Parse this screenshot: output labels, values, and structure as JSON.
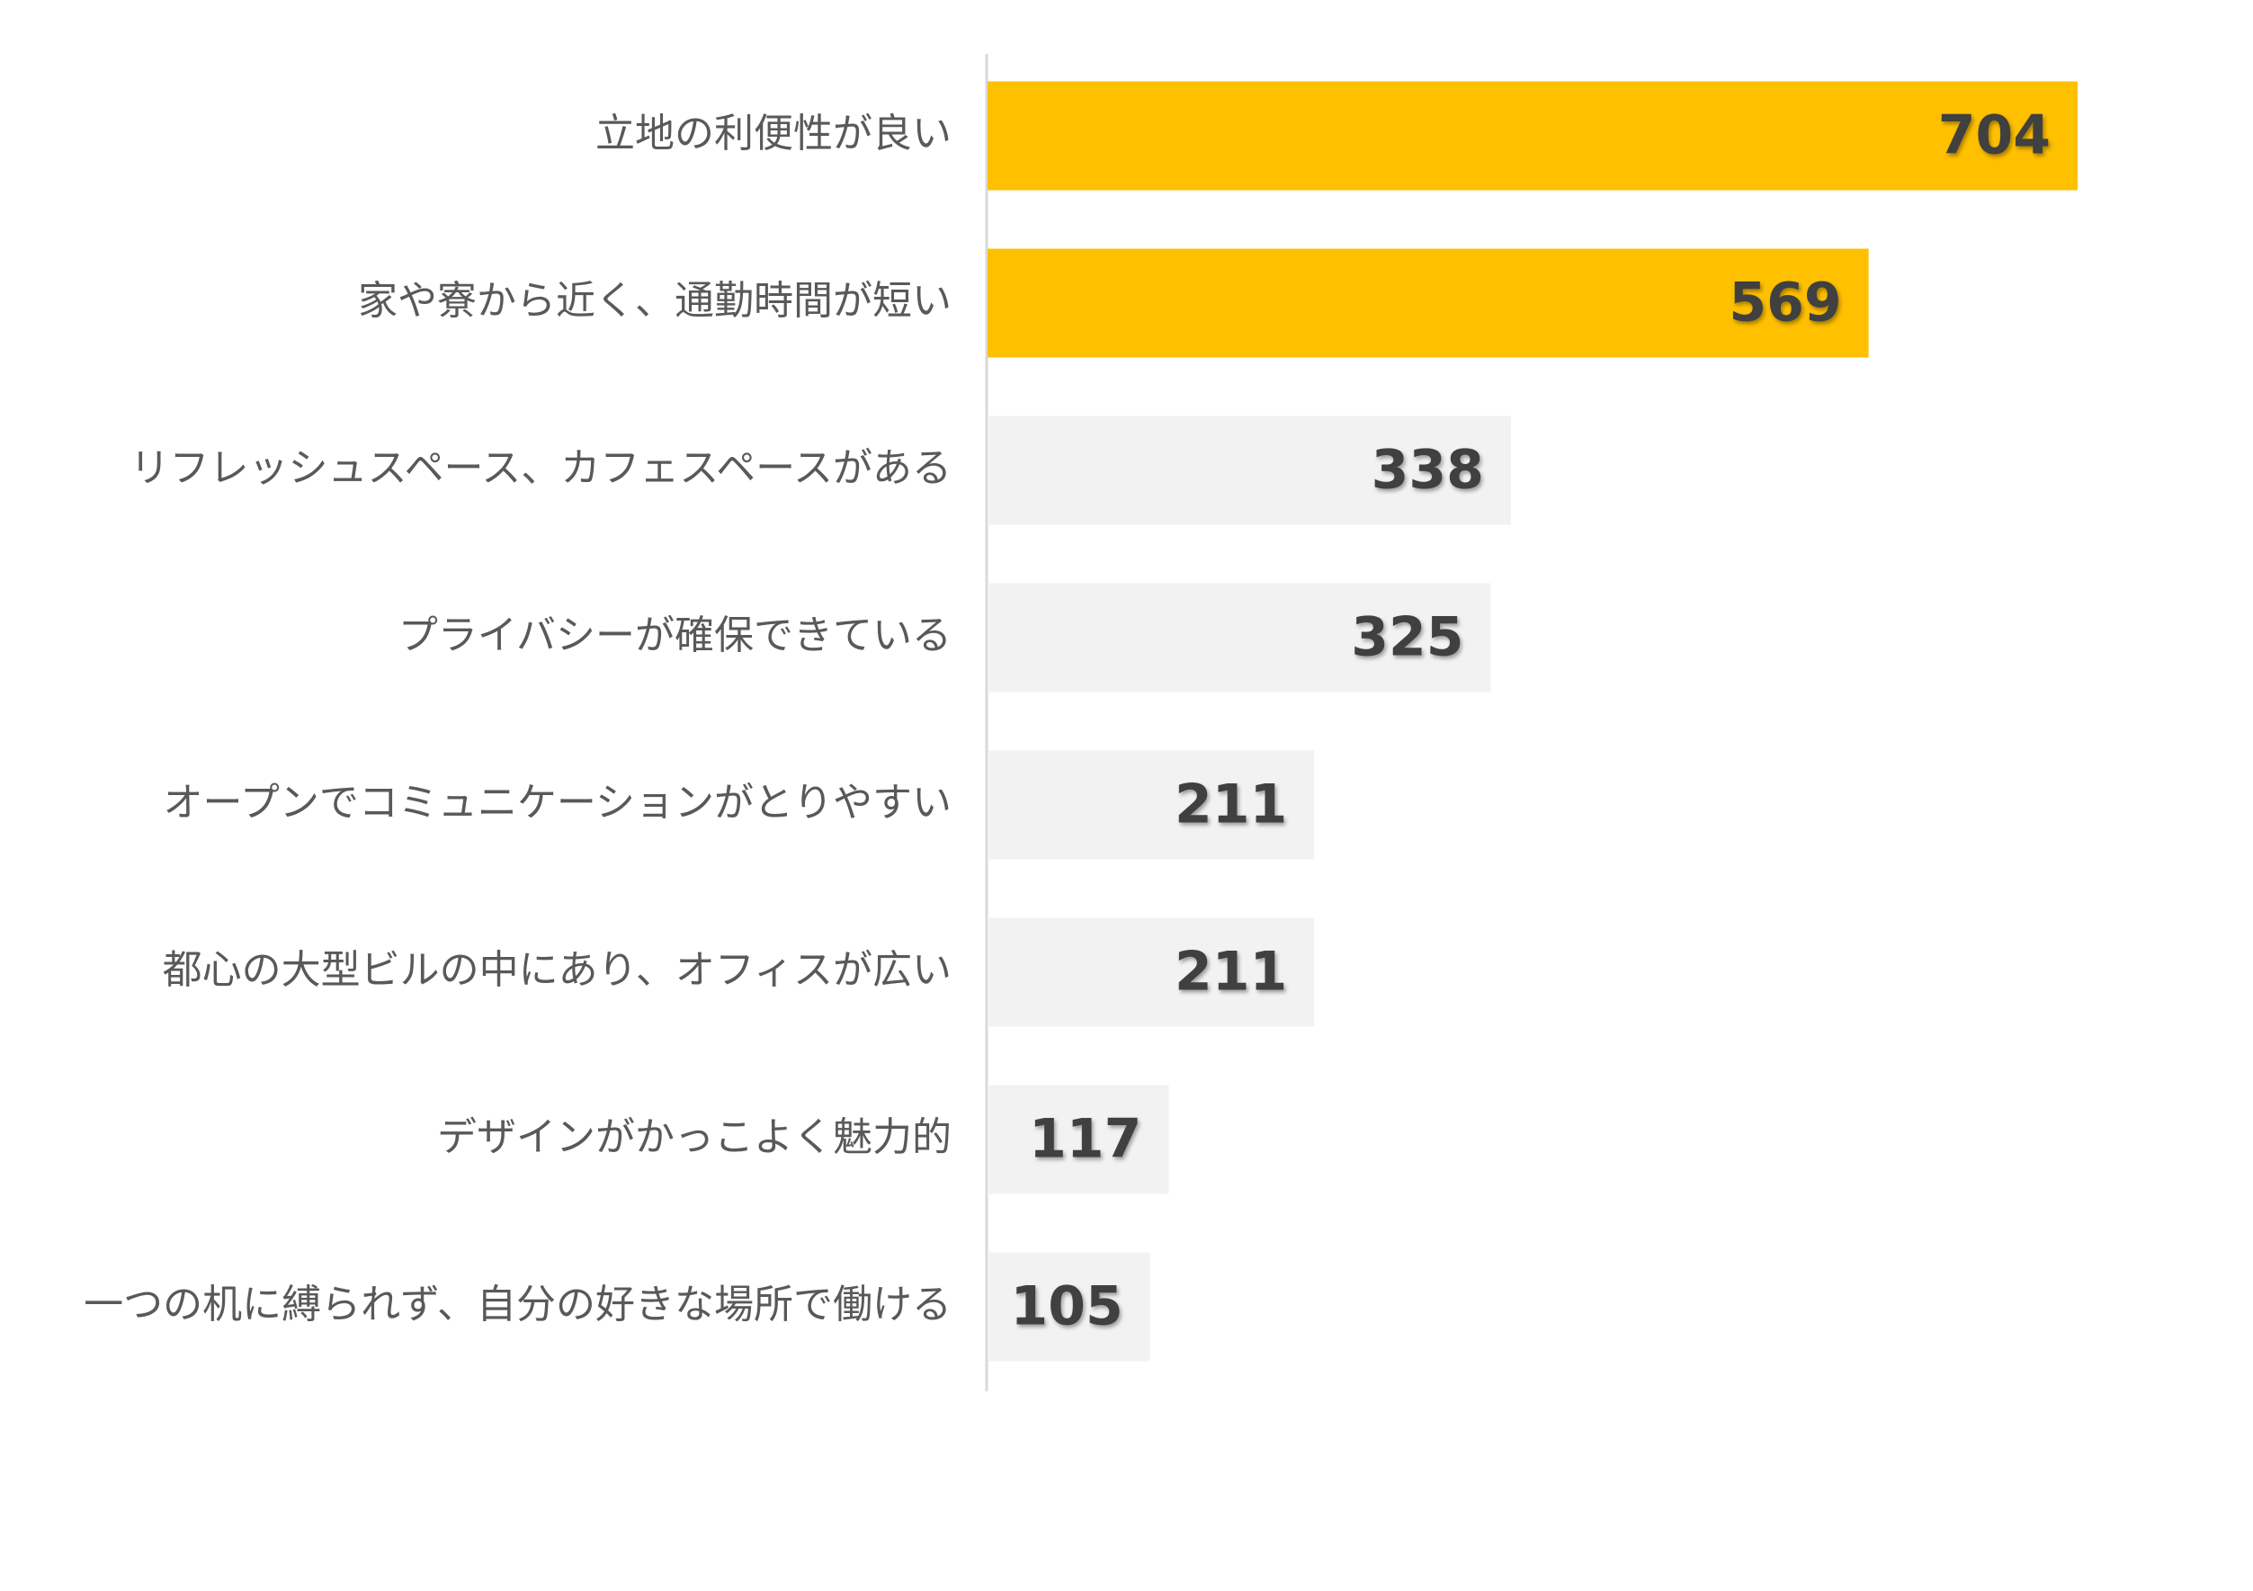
{
  "chart_data": {
    "type": "barh",
    "categories": [
      "立地の利便性が良い",
      "家や寮から近く、通勤時間が短い",
      "リフレッシュスペース、カフェスペースがある",
      "プライバシーが確保できている",
      "オープンでコミュニケーションがとりやすい",
      "都心の大型ビルの中にあり、オフィスが広い",
      "デザインがかっこよく魅力的",
      "一つの机に縛られず、自分の好きな場所で働ける"
    ],
    "values": [
      704,
      569,
      338,
      325,
      211,
      211,
      117,
      105
    ],
    "colors": [
      "#FFC000",
      "#FFC000",
      "#F2F2F2",
      "#F2F2F2",
      "#F2F2F2",
      "#F2F2F2",
      "#F2F2F2",
      "#F2F2F2"
    ]
  }
}
